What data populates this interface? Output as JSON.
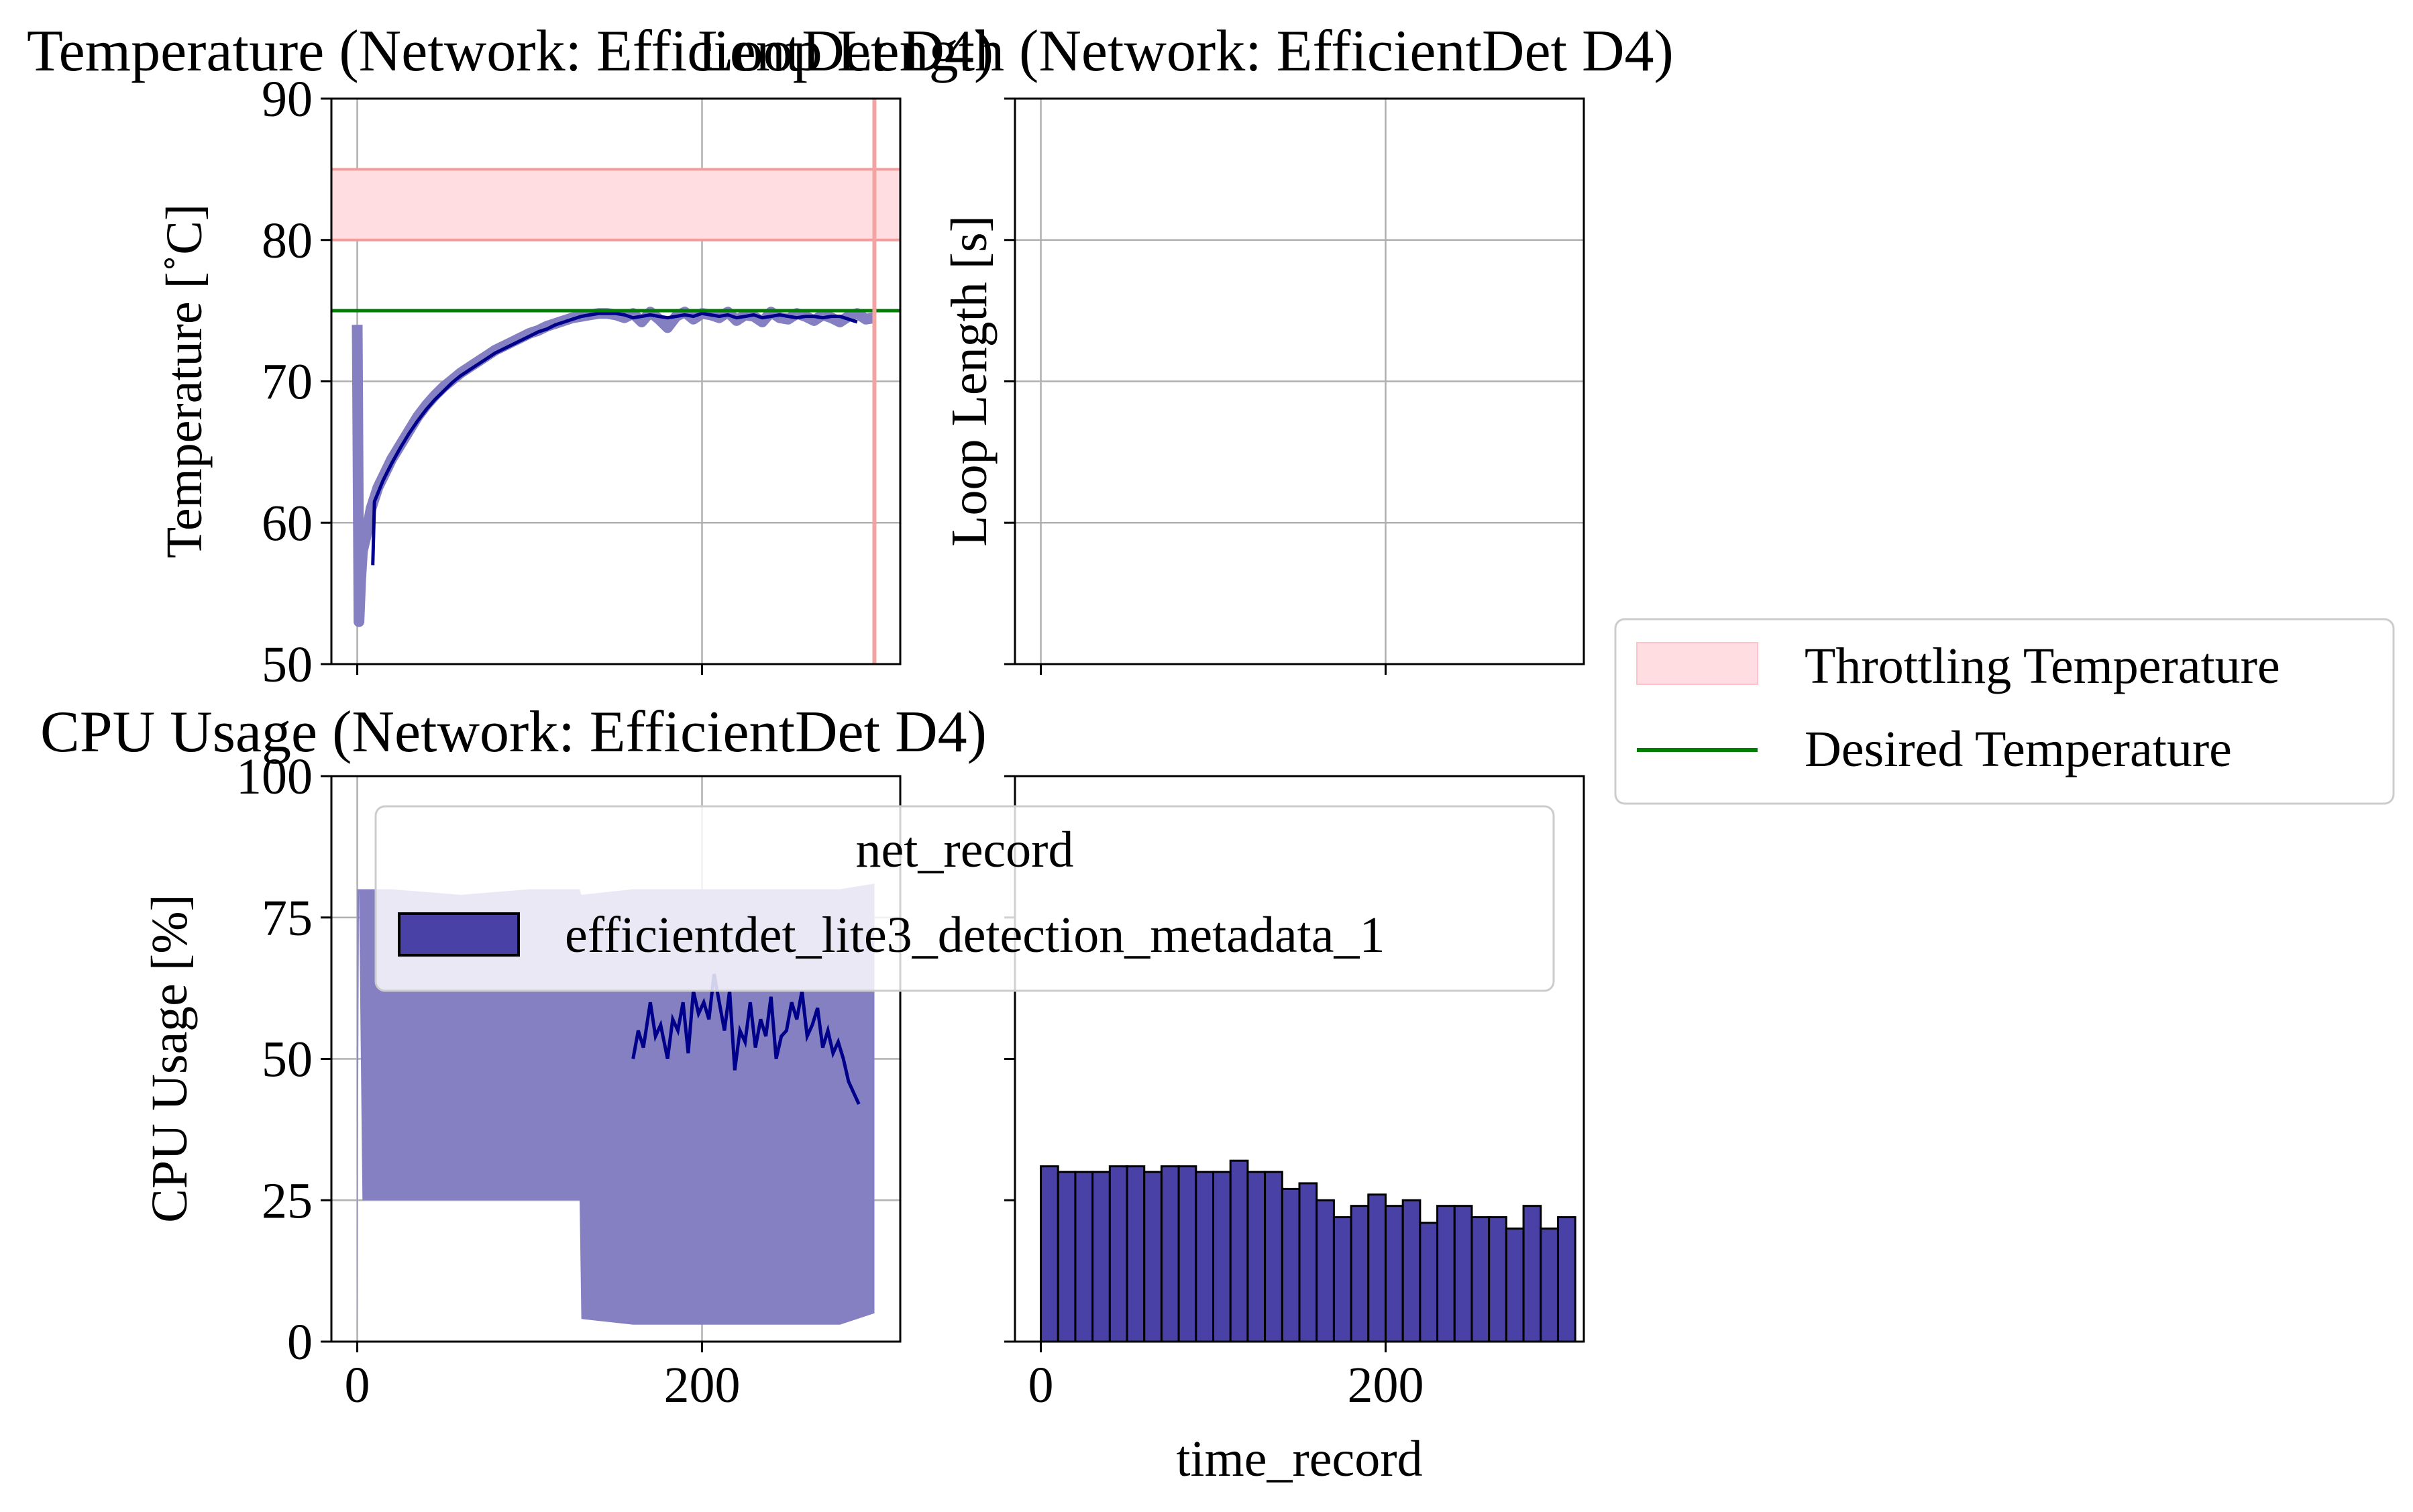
{
  "figure": {
    "legend_main": {
      "title": "net_record",
      "entries": [
        {
          "label": "efficientdet_lite3_detection_metadata_1",
          "color": "#4a41a6"
        }
      ]
    },
    "legend_side": {
      "entries": [
        {
          "label": "Throttling Temperature",
          "kind": "band",
          "color": "#ffdde0"
        },
        {
          "label": "Desired Temperature",
          "kind": "line",
          "color": "#008000"
        }
      ]
    }
  },
  "chart_data": [
    {
      "id": "temperature",
      "type": "line",
      "title": "Temperature (Network: EfficientDet D4)",
      "xlabel": "",
      "ylabel": "Temperature [$^\\circ$C]",
      "ylabel_text": "Temperature [˚C]",
      "xlim": [
        -15,
        315
      ],
      "ylim": [
        50,
        90
      ],
      "xticks": [
        0,
        200
      ],
      "yticks": [
        50,
        60,
        70,
        80,
        90
      ],
      "grid": true,
      "throttling_band": [
        80,
        85
      ],
      "desired_temperature": 75,
      "vline_x": 300,
      "colors": {
        "raw": "#8580c2",
        "smooth": "#00008b",
        "band": "#ffdde0",
        "band_edge": "#f29c9c",
        "desired": "#008000",
        "vline": "#f4a3a3"
      },
      "raw": {
        "x": [
          0,
          1,
          2,
          3,
          5,
          8,
          12,
          16,
          20,
          25,
          30,
          35,
          40,
          45,
          50,
          55,
          60,
          65,
          70,
          75,
          80,
          85,
          90,
          95,
          100,
          105,
          110,
          115,
          120,
          125,
          130,
          135,
          140,
          145,
          150,
          155,
          160,
          165,
          170,
          175,
          180,
          185,
          190,
          195,
          200,
          205,
          210,
          215,
          220,
          225,
          230,
          235,
          240,
          245,
          250,
          255,
          260,
          265,
          270,
          275,
          280,
          285,
          290,
          295,
          300
        ],
        "y": [
          74,
          53,
          56,
          58,
          59,
          61,
          62.5,
          63.5,
          64.5,
          65.5,
          66.5,
          67.5,
          68.3,
          69,
          69.6,
          70.1,
          70.6,
          71,
          71.4,
          71.8,
          72.2,
          72.5,
          72.8,
          73.1,
          73.4,
          73.6,
          73.9,
          74.1,
          74.3,
          74.5,
          74.6,
          74.7,
          74.8,
          74.8,
          74.7,
          74.5,
          74.8,
          74.2,
          74.9,
          74.4,
          73.8,
          74.6,
          74.9,
          74.4,
          74.8,
          74.7,
          74.5,
          74.9,
          74.3,
          74.7,
          74.6,
          74.2,
          74.9,
          74.5,
          74.4,
          74.8,
          74.6,
          74.3,
          74.7,
          74.5,
          74.2,
          74.6,
          74.8,
          74.4,
          74.5
        ]
      },
      "smooth": {
        "x": [
          9,
          10,
          15,
          20,
          25,
          30,
          35,
          40,
          45,
          50,
          55,
          60,
          65,
          70,
          75,
          80,
          85,
          90,
          95,
          100,
          105,
          110,
          115,
          120,
          125,
          130,
          135,
          140,
          145,
          150,
          155,
          160,
          165,
          170,
          175,
          180,
          185,
          190,
          195,
          200,
          205,
          210,
          215,
          220,
          225,
          230,
          235,
          240,
          245,
          250,
          255,
          260,
          265,
          270,
          275,
          280,
          285,
          290
        ],
        "y": [
          57,
          61.5,
          63,
          64.2,
          65.3,
          66.3,
          67.2,
          68,
          68.7,
          69.3,
          69.9,
          70.4,
          70.8,
          71.2,
          71.6,
          72,
          72.3,
          72.6,
          72.9,
          73.2,
          73.5,
          73.7,
          74,
          74.2,
          74.4,
          74.6,
          74.7,
          74.8,
          74.8,
          74.8,
          74.7,
          74.5,
          74.6,
          74.7,
          74.6,
          74.5,
          74.6,
          74.7,
          74.6,
          74.8,
          74.7,
          74.6,
          74.7,
          74.5,
          74.6,
          74.7,
          74.5,
          74.6,
          74.7,
          74.6,
          74.5,
          74.6,
          74.6,
          74.5,
          74.6,
          74.6,
          74.4,
          74.2
        ]
      }
    },
    {
      "id": "loop_length",
      "type": "line",
      "title": "Loop Length (Network: EfficientDet D4)",
      "ylabel": "Loop Length [s]",
      "xlim": [
        -15,
        315
      ],
      "ylim": [
        50,
        90
      ],
      "xticks": [
        0,
        200
      ],
      "yticks": [
        50,
        60,
        70,
        80,
        90
      ],
      "grid": true,
      "series": []
    },
    {
      "id": "cpu_usage",
      "type": "line",
      "title": "CPU Usage (Network: EfficientDet D4)",
      "xlabel": "",
      "ylabel": "CPU Usage [%]",
      "xlim": [
        -15,
        315
      ],
      "ylim": [
        0,
        100
      ],
      "xticks": [
        0,
        200
      ],
      "yticks": [
        0,
        25,
        50,
        75,
        100
      ],
      "grid": true,
      "colors": {
        "raw": "#8580c2",
        "smooth": "#00008b"
      },
      "raw_band": {
        "x": [
          0,
          1,
          3,
          20,
          60,
          100,
          129,
          130,
          160,
          200,
          240,
          280,
          300
        ],
        "upper": [
          80,
          80,
          80,
          80,
          79,
          80,
          80,
          79,
          80,
          80,
          80,
          80,
          81
        ],
        "lower": [
          0,
          80,
          25,
          25,
          25,
          25,
          25,
          4,
          3,
          3,
          3,
          3,
          5
        ]
      },
      "smooth": {
        "x": [
          160,
          163,
          166,
          170,
          173,
          176,
          180,
          183,
          186,
          189,
          192,
          195,
          198,
          201,
          204,
          207,
          210,
          213,
          216,
          219,
          222,
          225,
          228,
          231,
          234,
          237,
          240,
          243,
          246,
          249,
          252,
          255,
          258,
          261,
          264,
          267,
          270,
          273,
          276,
          279,
          282,
          285,
          288,
          291
        ],
        "y": [
          50,
          55,
          52,
          60,
          54,
          56,
          50,
          57,
          55,
          60,
          51,
          62,
          58,
          60,
          57,
          65,
          60,
          55,
          62,
          48,
          55,
          53,
          60,
          52,
          57,
          54,
          61,
          50,
          54,
          55,
          60,
          57,
          62,
          54,
          56,
          59,
          52,
          55,
          51,
          53,
          50,
          46,
          44,
          42
        ]
      }
    },
    {
      "id": "histogram",
      "type": "bar",
      "xlabel": "time_record",
      "ylabel": "",
      "xlim": [
        -15,
        315
      ],
      "ylim": [
        0,
        100
      ],
      "xticks": [
        0,
        200
      ],
      "yticks": [
        0,
        25,
        50,
        75,
        100
      ],
      "grid": false,
      "bin_start": 0,
      "bin_width": 10,
      "values": [
        31,
        30,
        30,
        30,
        31,
        31,
        30,
        31,
        31,
        30,
        30,
        32,
        30,
        30,
        27,
        28,
        25,
        22,
        24,
        26,
        24,
        25,
        21,
        24,
        24,
        22,
        22,
        20,
        24,
        20,
        22
      ],
      "color": "#4a41a6",
      "edgecolor": "#000000"
    }
  ]
}
